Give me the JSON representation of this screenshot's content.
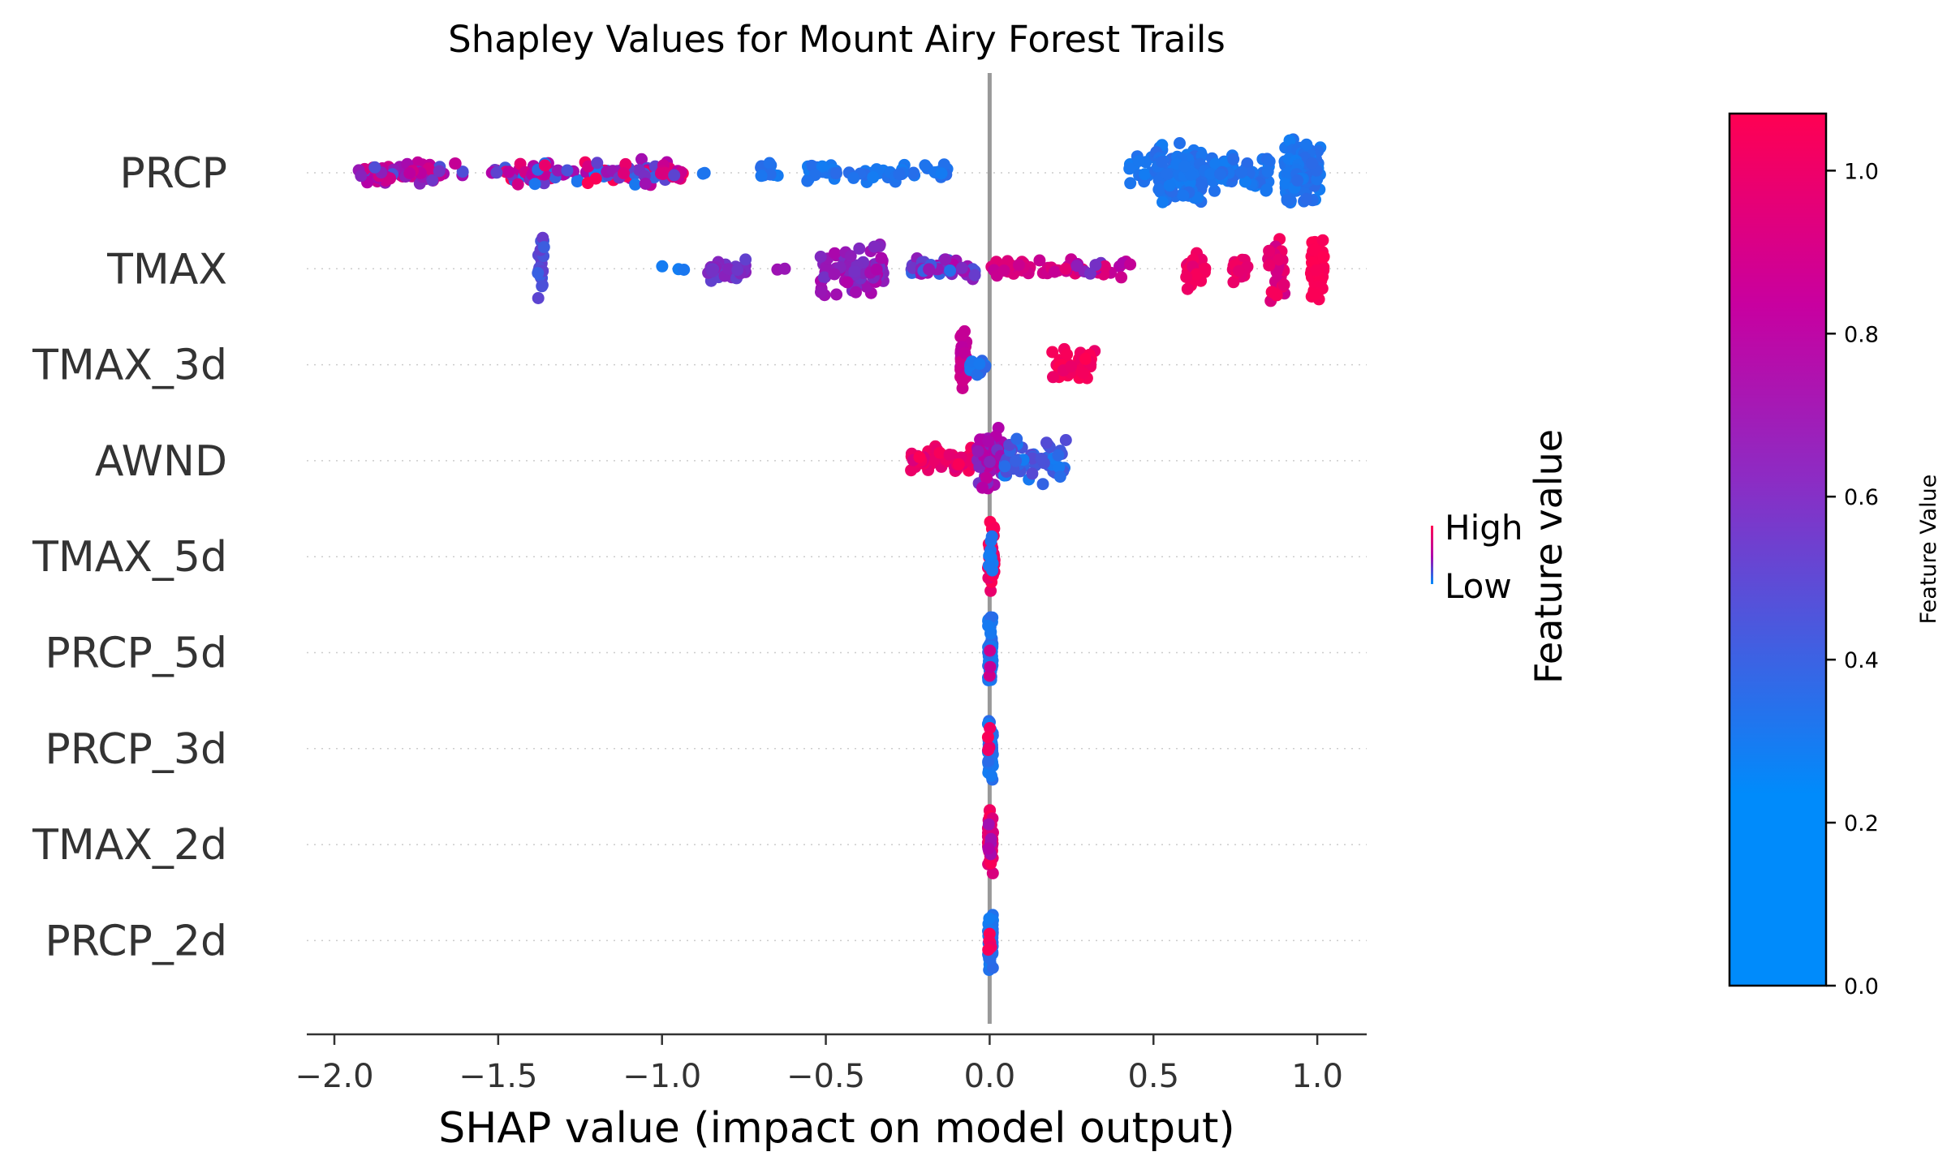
{
  "chart_data": {
    "type": "scatter",
    "subtype": "shap-beeswarm",
    "title": "Shapley Values for Mount Airy Forest Trails",
    "xlabel": "SHAP value (impact on model output)",
    "xlim": [
      -2.08,
      1.16
    ],
    "xticks": [
      {
        "value": -2.0,
        "label": "−2.0"
      },
      {
        "value": -1.5,
        "label": "−1.5"
      },
      {
        "value": -1.0,
        "label": "−1.0"
      },
      {
        "value": -0.5,
        "label": "−0.5"
      },
      {
        "value": 0.0,
        "label": "0.0"
      },
      {
        "value": 0.5,
        "label": "0.5"
      },
      {
        "value": 1.0,
        "label": "1.0"
      }
    ],
    "zero_line": 0.0,
    "grid": "horizontal dotted per feature",
    "features": [
      "PRCP",
      "TMAX",
      "TMAX_3d",
      "AWND",
      "TMAX_5d",
      "PRCP_5d",
      "PRCP_3d",
      "TMAX_2d",
      "PRCP_2d"
    ],
    "series": [
      {
        "feature": "PRCP",
        "clusters": [
          {
            "x": [
              -1.94,
              -1.6
            ],
            "fv": [
              0.2,
              0.75
            ],
            "n": 70,
            "spread": 0.35
          },
          {
            "x": [
              -1.52,
              -0.93
            ],
            "fv": [
              0.05,
              1.0
            ],
            "n": 110,
            "spread": 0.4
          },
          {
            "x": [
              -0.88,
              -0.86
            ],
            "fv": [
              0.05,
              0.1
            ],
            "n": 2,
            "spread": 0.2
          },
          {
            "x": [
              -0.7,
              -0.64
            ],
            "fv": [
              0.05,
              0.12
            ],
            "n": 10,
            "spread": 0.4
          },
          {
            "x": [
              -0.56,
              -0.12
            ],
            "fv": [
              0.05,
              0.12
            ],
            "n": 60,
            "spread": 0.3
          },
          {
            "x": [
              0.42,
              0.5
            ],
            "fv": [
              0.05,
              0.1
            ],
            "n": 14,
            "spread": 0.5
          },
          {
            "x": [
              0.5,
              0.65
            ],
            "fv": [
              0.05,
              0.12
            ],
            "n": 110,
            "spread": 1.0
          },
          {
            "x": [
              0.65,
              0.86
            ],
            "fv": [
              0.05,
              0.12
            ],
            "n": 60,
            "spread": 0.55
          },
          {
            "x": [
              0.9,
              0.93
            ],
            "fv": [
              0.05,
              0.1
            ],
            "n": 40,
            "spread": 1.0
          },
          {
            "x": [
              0.93,
              1.01
            ],
            "fv": [
              0.05,
              0.12
            ],
            "n": 70,
            "spread": 0.9
          }
        ]
      },
      {
        "feature": "TMAX",
        "clusters": [
          {
            "x": [
              -1.38,
              -1.36
            ],
            "fv": [
              0.15,
              0.3
            ],
            "n": 20,
            "spread": 1.0
          },
          {
            "x": [
              -1.02,
              -0.93
            ],
            "fv": [
              0.05,
              0.1
            ],
            "n": 3,
            "spread": 0.2
          },
          {
            "x": [
              -0.86,
              -0.74
            ],
            "fv": [
              0.25,
              0.4
            ],
            "n": 30,
            "spread": 0.35
          },
          {
            "x": [
              -0.65,
              -0.62
            ],
            "fv": [
              0.4,
              0.45
            ],
            "n": 2,
            "spread": 0.2
          },
          {
            "x": [
              -0.52,
              -0.32
            ],
            "fv": [
              0.3,
              0.5
            ],
            "n": 80,
            "spread": 0.8
          },
          {
            "x": [
              -0.24,
              -0.04
            ],
            "fv": [
              0.1,
              0.5
            ],
            "n": 60,
            "spread": 0.4
          },
          {
            "x": [
              0.0,
              0.22
            ],
            "fv": [
              0.6,
              0.8
            ],
            "n": 30,
            "spread": 0.25
          },
          {
            "x": [
              0.22,
              0.44
            ],
            "fv": [
              0.3,
              0.85
            ],
            "n": 30,
            "spread": 0.35
          },
          {
            "x": [
              0.6,
              0.66
            ],
            "fv": [
              0.8,
              0.95
            ],
            "n": 25,
            "spread": 0.7
          },
          {
            "x": [
              0.74,
              0.79
            ],
            "fv": [
              0.8,
              0.95
            ],
            "n": 20,
            "spread": 0.45
          },
          {
            "x": [
              0.85,
              0.9
            ],
            "fv": [
              0.65,
              0.95
            ],
            "n": 30,
            "spread": 1.0
          },
          {
            "x": [
              0.98,
              1.02
            ],
            "fv": [
              0.95,
              1.0
            ],
            "n": 60,
            "spread": 1.0
          }
        ]
      },
      {
        "feature": "TMAX_3d",
        "clusters": [
          {
            "x": [
              -0.09,
              -0.07
            ],
            "fv": [
              0.55,
              0.7
            ],
            "n": 40,
            "spread": 1.0
          },
          {
            "x": [
              -0.06,
              -0.01
            ],
            "fv": [
              0.05,
              0.15
            ],
            "n": 12,
            "spread": 0.35
          },
          {
            "x": [
              0.19,
              0.33
            ],
            "fv": [
              0.85,
              1.0
            ],
            "n": 40,
            "spread": 0.5
          }
        ]
      },
      {
        "feature": "AWND",
        "clusters": [
          {
            "x": [
              -0.24,
              -0.04
            ],
            "fv": [
              0.75,
              1.0
            ],
            "n": 60,
            "spread": 0.45
          },
          {
            "x": [
              -0.04,
              0.04
            ],
            "fv": [
              0.3,
              0.6
            ],
            "n": 60,
            "spread": 1.0
          },
          {
            "x": [
              0.04,
              0.24
            ],
            "fv": [
              0.05,
              0.25
            ],
            "n": 50,
            "spread": 0.7
          }
        ]
      },
      {
        "feature": "TMAX_5d",
        "clusters": [
          {
            "x": [
              -0.005,
              0.015
            ],
            "fv": [
              0.85,
              1.0
            ],
            "n": 50,
            "spread": 1.0
          },
          {
            "x": [
              -0.005,
              0.01
            ],
            "fv": [
              0.05,
              0.1
            ],
            "n": 8,
            "spread": 0.9
          }
        ]
      },
      {
        "feature": "PRCP_5d",
        "clusters": [
          {
            "x": [
              -0.005,
              0.01
            ],
            "fv": [
              0.05,
              0.12
            ],
            "n": 55,
            "spread": 1.0
          },
          {
            "x": [
              -0.005,
              0.005
            ],
            "fv": [
              0.55,
              0.7
            ],
            "n": 3,
            "spread": 0.9
          }
        ]
      },
      {
        "feature": "PRCP_3d",
        "clusters": [
          {
            "x": [
              -0.005,
              0.01
            ],
            "fv": [
              0.05,
              0.12
            ],
            "n": 55,
            "spread": 1.0
          },
          {
            "x": [
              -0.005,
              0.005
            ],
            "fv": [
              0.8,
              1.0
            ],
            "n": 4,
            "spread": 0.7
          }
        ]
      },
      {
        "feature": "TMAX_2d",
        "clusters": [
          {
            "x": [
              -0.005,
              0.01
            ],
            "fv": [
              0.7,
              1.0
            ],
            "n": 50,
            "spread": 1.0
          },
          {
            "x": [
              -0.005,
              0.005
            ],
            "fv": [
              0.4,
              0.5
            ],
            "n": 6,
            "spread": 0.8
          }
        ]
      },
      {
        "feature": "PRCP_2d",
        "clusters": [
          {
            "x": [
              -0.005,
              0.01
            ],
            "fv": [
              0.05,
              0.12
            ],
            "n": 55,
            "spread": 1.0
          },
          {
            "x": [
              -0.005,
              0.005
            ],
            "fv": [
              0.85,
              1.0
            ],
            "n": 5,
            "spread": 0.5
          }
        ]
      }
    ],
    "colorbar": {
      "label": "Feature Value",
      "range": [
        0.0,
        1.07
      ],
      "ticks": [
        {
          "value": 0.0,
          "label": "0.0"
        },
        {
          "value": 0.2,
          "label": "0.2"
        },
        {
          "value": 0.4,
          "label": "0.4"
        },
        {
          "value": 0.6,
          "label": "0.6"
        },
        {
          "value": 0.8,
          "label": "0.8"
        },
        {
          "value": 1.0,
          "label": "1.0"
        }
      ],
      "color_low": "#008bfb",
      "color_mid": "#b400a8",
      "color_high": "#ff0052"
    },
    "legend": {
      "title": "Feature value",
      "high_label": "High",
      "low_label": "Low",
      "placement": "right"
    }
  }
}
